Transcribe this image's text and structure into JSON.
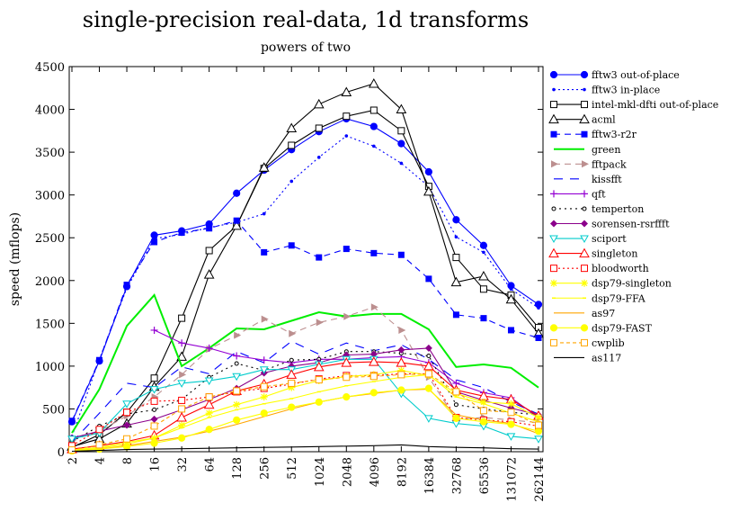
{
  "chart_data": {
    "type": "line",
    "title": "single-precision real-data, 1d transforms",
    "subtitle": "powers of two",
    "ylabel": "speed (mflops)",
    "xlabel": "",
    "categories": [
      "2",
      "4",
      "8",
      "16",
      "32",
      "64",
      "128",
      "256",
      "512",
      "1024",
      "2048",
      "4096",
      "8192",
      "16384",
      "32768",
      "65536",
      "131072",
      "262144"
    ],
    "ylim": [
      0,
      4500
    ],
    "yticks": [
      0,
      500,
      1000,
      1500,
      2000,
      2500,
      3000,
      3500,
      4000,
      4500
    ],
    "grid": false,
    "legend_position": "right",
    "series": [
      {
        "name": "fftw3 out-of-place",
        "color": "#0000ff",
        "dash": "",
        "marker": "filled-circle",
        "values": [
          350,
          1060,
          1930,
          2530,
          2580,
          2660,
          3020,
          3290,
          3530,
          3740,
          3890,
          3800,
          3600,
          3270,
          2710,
          2410,
          1940,
          1720
        ]
      },
      {
        "name": "fftw3 in-place",
        "color": "#0000ff",
        "dash": "2,3",
        "marker": "small-dot",
        "values": [
          180,
          1080,
          1910,
          2490,
          2540,
          2620,
          2680,
          2780,
          3160,
          3440,
          3690,
          3570,
          3370,
          3100,
          2510,
          2330,
          1900,
          1680
        ]
      },
      {
        "name": "intel-mkl-dfti out-of-place",
        "color": "#000000",
        "dash": "",
        "marker": "open-square",
        "values": [
          50,
          200,
          460,
          860,
          1560,
          2350,
          2640,
          3310,
          3580,
          3780,
          3920,
          3990,
          3750,
          3100,
          2270,
          1900,
          1830,
          1450
        ]
      },
      {
        "name": "acml",
        "color": "#000000",
        "dash": "",
        "marker": "open-triangle",
        "values": [
          60,
          150,
          330,
          760,
          1110,
          2070,
          2640,
          3320,
          3780,
          4060,
          4200,
          4300,
          4000,
          3040,
          1980,
          2050,
          1780,
          1380
        ]
      },
      {
        "name": "fftw3-r2r",
        "color": "#0000ff",
        "dash": "7,5",
        "marker": "filled-square",
        "values": [
          360,
          1070,
          1950,
          2450,
          2560,
          2610,
          2700,
          2330,
          2410,
          2270,
          2370,
          2320,
          2300,
          2020,
          1600,
          1560,
          1420,
          1330
        ]
      },
      {
        "name": "green",
        "color": "#00ee00",
        "dash": "",
        "marker": "none",
        "values": [
          220,
          730,
          1470,
          1830,
          1000,
          1210,
          1440,
          1430,
          1530,
          1630,
          1580,
          1610,
          1610,
          1430,
          990,
          1020,
          980,
          750
        ]
      },
      {
        "name": "fftpack",
        "color": "#bc8f8f",
        "dash": "7,5",
        "marker": "filled-triangle-right",
        "values": [
          130,
          240,
          420,
          640,
          900,
          1200,
          1360,
          1550,
          1380,
          1510,
          1580,
          1690,
          1420,
          870,
          380,
          400,
          370,
          340
        ]
      },
      {
        "name": "kissfft",
        "color": "#0000ff",
        "dash": "10,8",
        "marker": "none",
        "values": [
          110,
          450,
          800,
          750,
          990,
          910,
          1170,
          1040,
          1290,
          1140,
          1270,
          1180,
          1250,
          1080,
          840,
          750,
          580,
          440
        ]
      },
      {
        "name": "qft",
        "color": "#9400d3",
        "dash": "",
        "marker": "plus",
        "values": [
          null,
          null,
          null,
          1420,
          1270,
          1210,
          1120,
          1070,
          1040,
          1080,
          1080,
          1100,
          1110,
          1040,
          800,
          690,
          630,
          400
        ]
      },
      {
        "name": "temperton",
        "color": "#000000",
        "dash": "2,4",
        "marker": "open-circle-small",
        "values": [
          120,
          300,
          440,
          490,
          610,
          870,
          1030,
          950,
          1070,
          1080,
          1170,
          1170,
          1150,
          1120,
          550,
          500,
          460,
          430
        ]
      },
      {
        "name": "sorensen-rsrffft",
        "color": "#8b008b",
        "dash": "",
        "marker": "filled-diamond",
        "values": [
          160,
          240,
          310,
          380,
          490,
          610,
          740,
          920,
          1000,
          1040,
          1130,
          1140,
          1190,
          1210,
          700,
          600,
          510,
          430
        ]
      },
      {
        "name": "sciport",
        "color": "#00cccc",
        "dash": "",
        "marker": "open-triangle-down",
        "values": [
          150,
          220,
          560,
          730,
          800,
          830,
          880,
          960,
          960,
          1020,
          1080,
          1080,
          680,
          390,
          330,
          300,
          180,
          150
        ]
      },
      {
        "name": "singleton",
        "color": "#ff0000",
        "dash": "",
        "marker": "open-triangle",
        "values": [
          30,
          70,
          120,
          190,
          400,
          550,
          710,
          790,
          900,
          990,
          1040,
          1050,
          1040,
          1000,
          720,
          650,
          610,
          420
        ]
      },
      {
        "name": "bloodworth",
        "color": "#ff0000",
        "dash": "2,3",
        "marker": "open-square",
        "values": [
          70,
          260,
          460,
          590,
          600,
          640,
          700,
          740,
          790,
          850,
          890,
          890,
          910,
          910,
          400,
          370,
          350,
          300
        ]
      },
      {
        "name": "dsp79-singleton",
        "color": "#ffff00",
        "dash": "",
        "marker": "asterisk",
        "values": [
          20,
          50,
          110,
          160,
          310,
          450,
          550,
          640,
          750,
          830,
          880,
          900,
          950,
          890,
          680,
          580,
          560,
          400
        ]
      },
      {
        "name": "dsp79-FFA",
        "color": "#ffff00",
        "dash": "",
        "marker": "small-tick",
        "values": [
          20,
          40,
          90,
          160,
          280,
          400,
          490,
          560,
          620,
          700,
          770,
          820,
          870,
          900,
          640,
          560,
          450,
          350
        ]
      },
      {
        "name": "as97",
        "color": "#ffa500",
        "dash": "",
        "marker": "none",
        "values": [
          10,
          30,
          70,
          120,
          170,
          240,
          320,
          410,
          500,
          580,
          640,
          680,
          720,
          730,
          430,
          370,
          330,
          210
        ]
      },
      {
        "name": "dsp79-FAST",
        "color": "#ffff00",
        "dash": "",
        "marker": "filled-circle",
        "values": [
          10,
          30,
          60,
          100,
          160,
          260,
          370,
          450,
          520,
          580,
          640,
          690,
          720,
          740,
          390,
          350,
          320,
          240
        ]
      },
      {
        "name": "cwplib",
        "color": "#ffa500",
        "dash": "4,3",
        "marker": "open-square",
        "values": [
          20,
          80,
          150,
          300,
          500,
          640,
          710,
          760,
          800,
          840,
          870,
          880,
          900,
          910,
          700,
          480,
          460,
          310
        ]
      },
      {
        "name": "as117",
        "color": "#000000",
        "dash": "",
        "marker": "none",
        "values": [
          5,
          15,
          25,
          30,
          35,
          40,
          45,
          50,
          55,
          60,
          65,
          70,
          80,
          60,
          50,
          45,
          35,
          30
        ]
      }
    ]
  }
}
